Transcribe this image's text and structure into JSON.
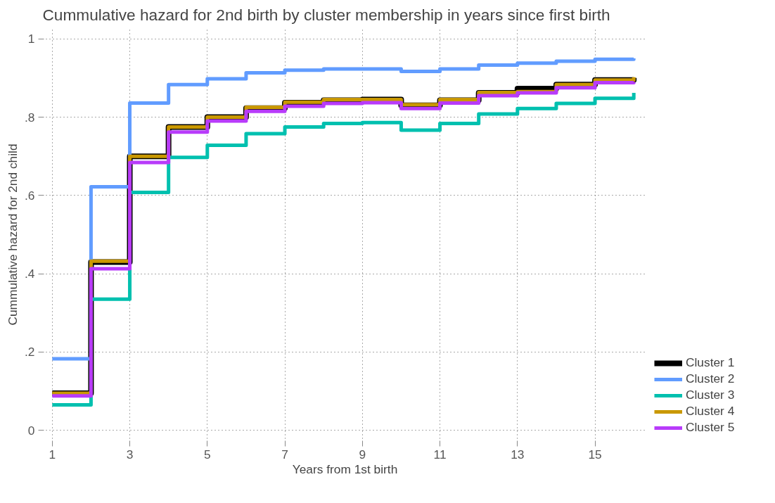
{
  "chart_data": {
    "type": "step",
    "title": "Cummulative hazard for 2nd birth by cluster membership in years since first birth",
    "xlabel": "Years from 1st birth",
    "ylabel": "Cummulative hazard for 2nd child",
    "x": [
      1,
      2,
      3,
      4,
      5,
      6,
      7,
      8,
      9,
      10,
      11,
      12,
      13,
      14,
      15,
      16
    ],
    "series": [
      {
        "name": "Cluster 1",
        "color": "#000000",
        "values": [
          0.095,
          0.43,
          0.7,
          0.775,
          0.8,
          0.823,
          0.837,
          0.843,
          0.845,
          0.83,
          0.843,
          0.862,
          0.873,
          0.883,
          0.895,
          0.9
        ]
      },
      {
        "name": "Cluster 2",
        "color": "#619cff",
        "values": [
          0.183,
          0.622,
          0.836,
          0.883,
          0.898,
          0.913,
          0.92,
          0.923,
          0.923,
          0.917,
          0.923,
          0.933,
          0.938,
          0.943,
          0.948,
          0.95
        ]
      },
      {
        "name": "Cluster 3",
        "color": "#00c0af",
        "values": [
          0.065,
          0.335,
          0.608,
          0.697,
          0.728,
          0.758,
          0.775,
          0.784,
          0.786,
          0.767,
          0.784,
          0.808,
          0.822,
          0.835,
          0.848,
          0.862
        ]
      },
      {
        "name": "Cluster 4",
        "color": "#c99800",
        "values": [
          0.095,
          0.432,
          0.7,
          0.775,
          0.8,
          0.825,
          0.838,
          0.845,
          0.845,
          0.832,
          0.845,
          0.863,
          0.865,
          0.883,
          0.895,
          0.902
        ]
      },
      {
        "name": "Cluster 5",
        "color": "#b83bfa",
        "values": [
          0.088,
          0.413,
          0.684,
          0.762,
          0.79,
          0.815,
          0.828,
          0.835,
          0.837,
          0.822,
          0.836,
          0.855,
          0.862,
          0.875,
          0.888,
          0.89
        ]
      }
    ],
    "xlim": [
      0.75,
      16.35
    ],
    "ylim": [
      -0.03,
      1.03
    ],
    "xticks": [
      1,
      3,
      5,
      7,
      9,
      11,
      13,
      15
    ],
    "yticks": [
      0,
      {
        "value": 0.2,
        "label": ".2"
      },
      {
        "value": 0.4,
        "label": ".4"
      },
      {
        "value": 0.6,
        "label": ".6"
      },
      {
        "value": 0.8,
        "label": ".8"
      },
      1
    ],
    "grid": true,
    "legend": "right",
    "line_style": "solid"
  }
}
